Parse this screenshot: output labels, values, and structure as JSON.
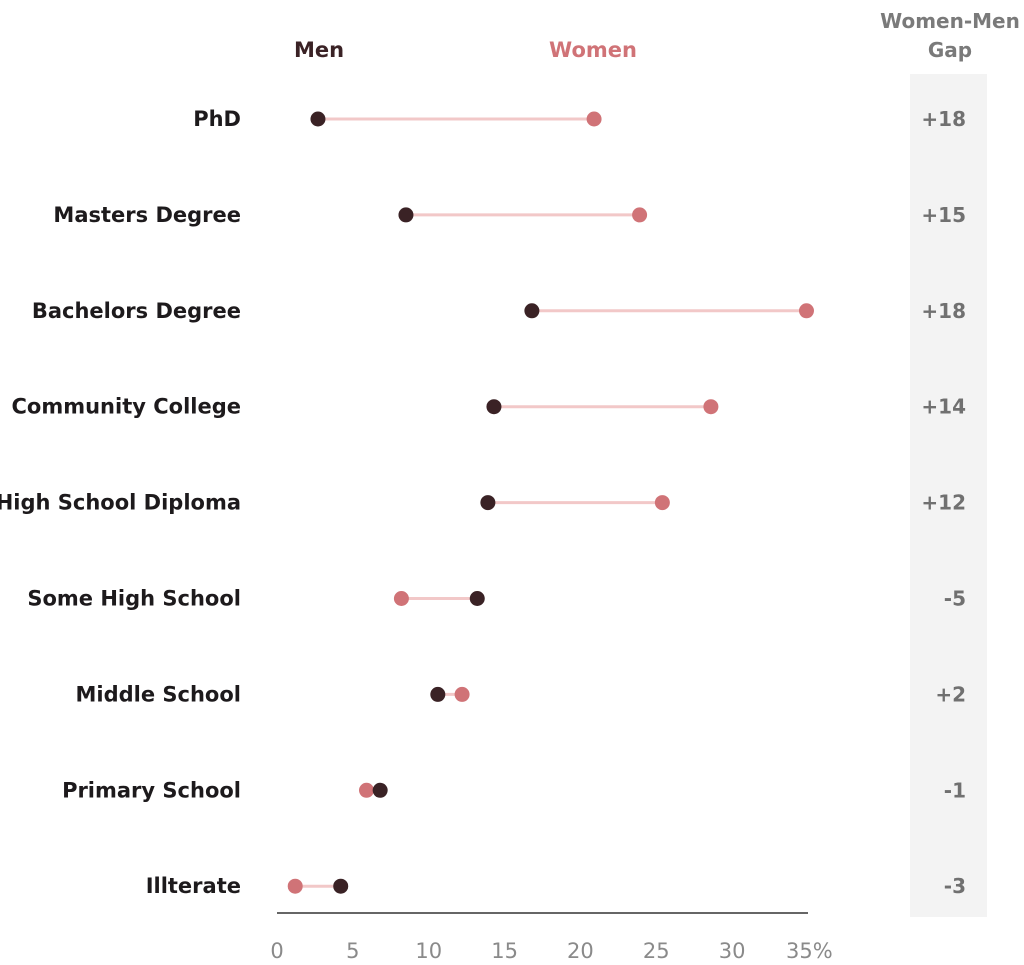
{
  "chart_data": {
    "type": "dumbbell",
    "legend": {
      "men": "Men",
      "women": "Women"
    },
    "gap_header": [
      "Women-Men",
      "Gap"
    ],
    "categories": [
      "PhD",
      "Masters Degree",
      "Bachelors Degree",
      "Community College",
      "High School Diploma",
      "Some High School",
      "Middle School",
      "Primary School",
      "Illterate"
    ],
    "series": [
      {
        "name": "Men",
        "values": [
          2.7,
          8.5,
          16.8,
          14.3,
          13.9,
          13.2,
          10.6,
          6.8,
          4.2
        ]
      },
      {
        "name": "Women",
        "values": [
          20.9,
          23.9,
          34.9,
          28.6,
          25.4,
          8.2,
          12.2,
          5.9,
          1.2
        ]
      }
    ],
    "gap_labels": [
      "+18",
      "+15",
      "+18",
      "+14",
      "+12",
      "-5",
      "+2",
      "-1",
      "-3"
    ],
    "xlim": [
      0,
      35
    ],
    "x_ticks": [
      "0",
      "5",
      "10",
      "15",
      "20",
      "25",
      "30",
      "35%"
    ],
    "colors": {
      "men": "#3a2225",
      "women": "#d07377",
      "connector": "#f2c8c8",
      "gap_panel": "#f3f3f3",
      "axis": "#333333"
    }
  }
}
